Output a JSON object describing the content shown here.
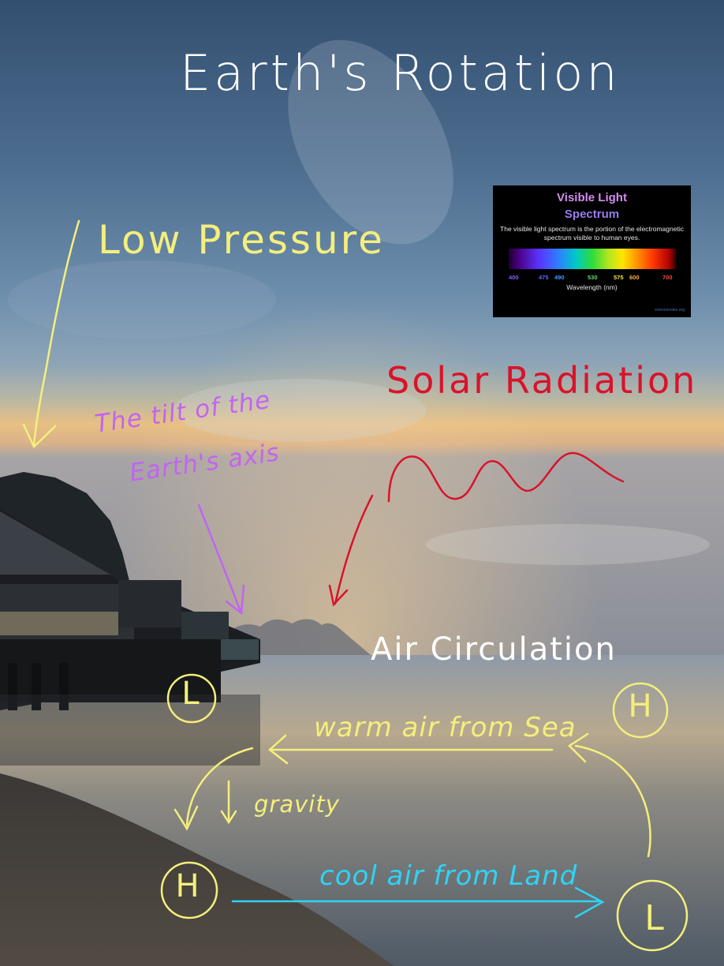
{
  "title": "Earth's Rotation",
  "labels": {
    "low_pressure": "Low Pressure",
    "solar_radiation": "Solar Radiation",
    "tilt_line1": "The tilt of the",
    "tilt_line2": "Earth's axis",
    "air_circulation": "Air Circulation",
    "warm_air": "warm air from Sea",
    "cool_air": "cool air from Land",
    "gravity": "gravity"
  },
  "pressure_marks": {
    "land_upper": "L",
    "sea_upper": "H",
    "land_lower": "H",
    "sea_lower": "L"
  },
  "spectrum_card": {
    "title_line1": "Visible Light",
    "title_line2": "Spectrum",
    "description": "The visible light spectrum is the portion of the electromagnetic spectrum visible to human eyes.",
    "wavelengths": [
      "400",
      "475",
      "490",
      "530",
      "575",
      "600",
      "700"
    ],
    "axis_label": "Wavelength (nm)",
    "source": "sciencenotes.org"
  },
  "colors": {
    "annotation_yellow": "#f4ef7c",
    "solar_red": "#d9132a",
    "tilt_purple": "#c264f2",
    "cool_air_cyan": "#2fd3f5",
    "title_white": "#ffffff"
  }
}
